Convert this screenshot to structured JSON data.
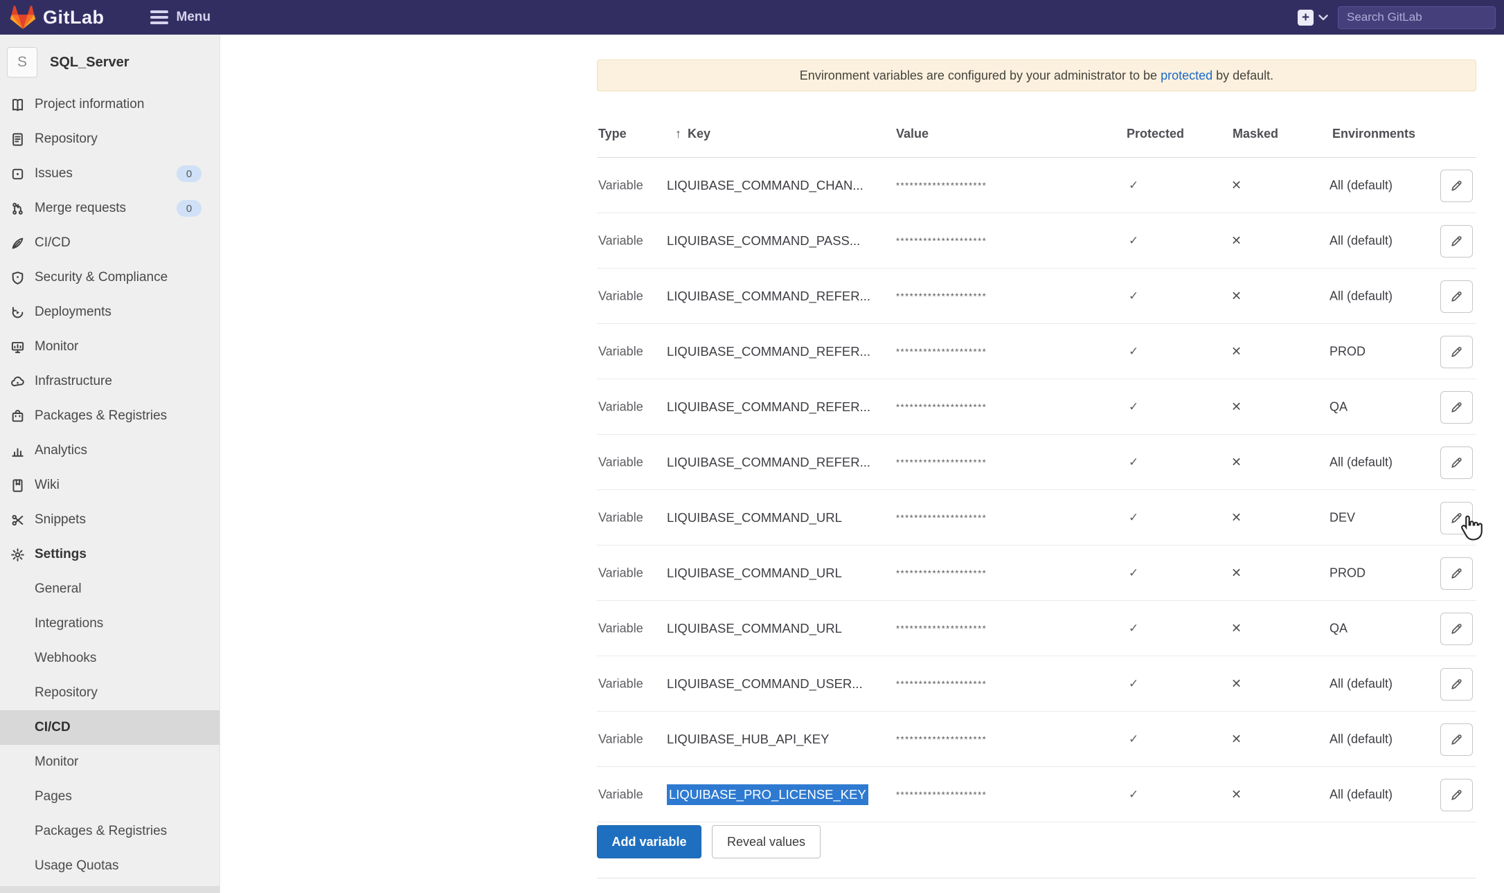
{
  "header": {
    "brand": "GitLab",
    "menu_label": "Menu",
    "search_placeholder": "Search GitLab",
    "plus_label": "+"
  },
  "sidebar": {
    "project_initial": "S",
    "project_name": "SQL_Server",
    "items": [
      {
        "label": "Project information",
        "icon": "project-information-icon"
      },
      {
        "label": "Repository",
        "icon": "repository-icon"
      },
      {
        "label": "Issues",
        "icon": "issues-icon",
        "badge": "0"
      },
      {
        "label": "Merge requests",
        "icon": "merge-requests-icon",
        "badge": "0"
      },
      {
        "label": "CI/CD",
        "icon": "ci-cd-icon"
      },
      {
        "label": "Security & Compliance",
        "icon": "security-compliance-icon"
      },
      {
        "label": "Deployments",
        "icon": "deployments-icon"
      },
      {
        "label": "Monitor",
        "icon": "monitor-icon"
      },
      {
        "label": "Infrastructure",
        "icon": "infrastructure-icon"
      },
      {
        "label": "Packages & Registries",
        "icon": "packages-registries-icon"
      },
      {
        "label": "Analytics",
        "icon": "analytics-icon"
      },
      {
        "label": "Wiki",
        "icon": "wiki-icon"
      },
      {
        "label": "Snippets",
        "icon": "snippets-icon"
      },
      {
        "label": "Settings",
        "icon": "settings-icon",
        "bold": true
      }
    ],
    "settings_subitems": [
      {
        "label": "General"
      },
      {
        "label": "Integrations"
      },
      {
        "label": "Webhooks"
      },
      {
        "label": "Repository"
      },
      {
        "label": "CI/CD",
        "active": true
      },
      {
        "label": "Monitor"
      },
      {
        "label": "Pages"
      },
      {
        "label": "Packages & Registries"
      },
      {
        "label": "Usage Quotas"
      }
    ]
  },
  "main": {
    "banner": {
      "text_before": "Environment variables are configured by your administrator to be",
      "link_text": "protected",
      "text_after": "by default."
    },
    "table": {
      "headers": {
        "type": "Type",
        "key": "Key",
        "value": "Value",
        "protected": "Protected",
        "masked": "Masked",
        "environments": "Environments"
      },
      "sort_indicator": "↑",
      "masked_value": "********************",
      "protected_mark": "✓",
      "masked_mark": "✕",
      "rows": [
        {
          "type": "Variable",
          "key": "LIQUIBASE_COMMAND_CHAN...",
          "env": "All (default)"
        },
        {
          "type": "Variable",
          "key": "LIQUIBASE_COMMAND_PASS...",
          "env": "All (default)"
        },
        {
          "type": "Variable",
          "key": "LIQUIBASE_COMMAND_REFER...",
          "env": "All (default)"
        },
        {
          "type": "Variable",
          "key": "LIQUIBASE_COMMAND_REFER...",
          "env": "PROD"
        },
        {
          "type": "Variable",
          "key": "LIQUIBASE_COMMAND_REFER...",
          "env": "QA"
        },
        {
          "type": "Variable",
          "key": "LIQUIBASE_COMMAND_REFER...",
          "env": "All (default)"
        },
        {
          "type": "Variable",
          "key": "LIQUIBASE_COMMAND_URL",
          "env": "DEV"
        },
        {
          "type": "Variable",
          "key": "LIQUIBASE_COMMAND_URL",
          "env": "PROD"
        },
        {
          "type": "Variable",
          "key": "LIQUIBASE_COMMAND_URL",
          "env": "QA"
        },
        {
          "type": "Variable",
          "key": "LIQUIBASE_COMMAND_USER...",
          "env": "All (default)"
        },
        {
          "type": "Variable",
          "key": "LIQUIBASE_HUB_API_KEY",
          "env": "All (default)"
        },
        {
          "type": "Variable",
          "key": "LIQUIBASE_PRO_LICENSE_KEY",
          "env": "All (default)",
          "selected": true
        }
      ]
    },
    "buttons": {
      "add_variable": "Add variable",
      "reveal_values": "Reveal values"
    }
  },
  "colors": {
    "topbar_bg": "#332e62",
    "banner_bg": "#fcf1de",
    "link_blue": "#1b69c9",
    "primary_button_blue": "#1f6fc0",
    "selection_blue": "#2e7ad1",
    "sidebar_active_bg": "#d8d8d8"
  }
}
